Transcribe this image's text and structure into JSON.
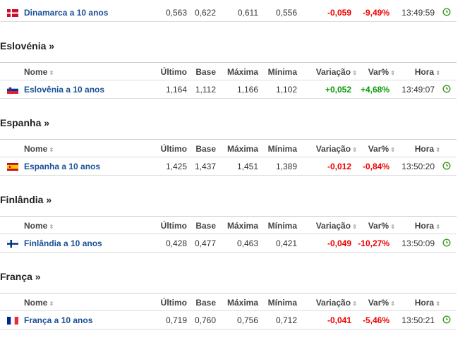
{
  "top_row": {
    "name": "Dinamarca a 10 anos",
    "values": [
      "0,563",
      "0,622",
      "0,611",
      "0,556",
      "-0,059",
      "-9,49%",
      "13:49:59"
    ]
  },
  "sections": [
    {
      "title": "Eslovénia »",
      "columns": [
        "Nome",
        "Último",
        "Base",
        "Máxima",
        "Mínima",
        "Variação",
        "Var%",
        "Hora"
      ],
      "row": {
        "name": "Eslovênia a 10 anos",
        "values": [
          "1,164",
          "1,112",
          "1,166",
          "1,102",
          "+0,052",
          "+4,68%",
          "13:49:07"
        ]
      }
    },
    {
      "title": "Espanha »",
      "columns": [
        "Nome",
        "Último",
        "Base",
        "Máxima",
        "Mínima",
        "Variação",
        "Var%",
        "Hora"
      ],
      "row": {
        "name": "Espanha a 10 anos",
        "values": [
          "1,425",
          "1,437",
          "1,451",
          "1,389",
          "-0,012",
          "-0,84%",
          "13:50:20"
        ]
      }
    },
    {
      "title": "Finlândia »",
      "columns": [
        "Nome",
        "Último",
        "Base",
        "Máxima",
        "Mínima",
        "Variação",
        "Var%",
        "Hora"
      ],
      "row": {
        "name": "Finlândia a 10 anos",
        "values": [
          "0,428",
          "0,477",
          "0,463",
          "0,421",
          "-0,049",
          "-10,27%",
          "13:50:09"
        ]
      }
    },
    {
      "title": "França »",
      "columns": [
        "Nome",
        "Último",
        "Base",
        "Máxima",
        "Mínima",
        "Variação",
        "Var%",
        "Hora"
      ],
      "row": {
        "name": "França a 10 anos",
        "values": [
          "0,719",
          "0,760",
          "0,756",
          "0,712",
          "-0,041",
          "-5,46%",
          "13:50:21"
        ]
      }
    }
  ]
}
